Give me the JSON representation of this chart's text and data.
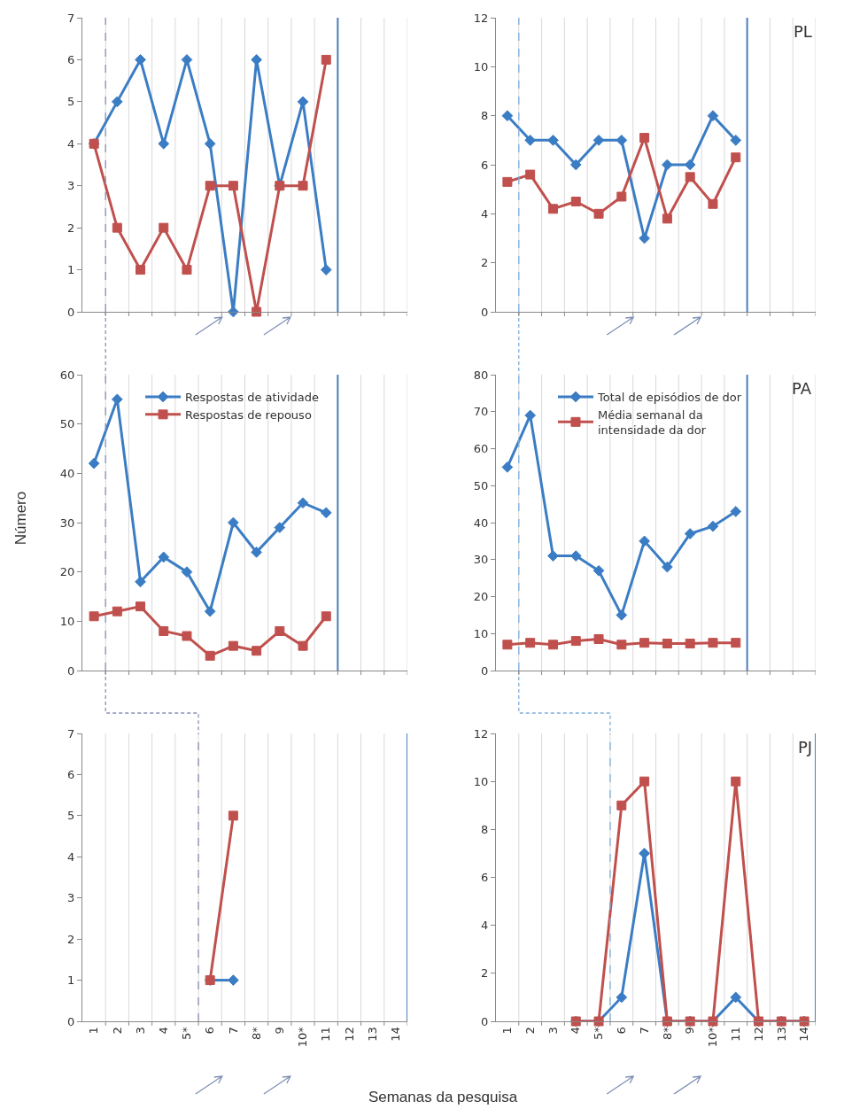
{
  "chart_data": [
    {
      "type": "line",
      "xlim": [
        0.5,
        14.5
      ],
      "ylim": [
        0,
        7
      ],
      "yticks": [
        0,
        1,
        2,
        3,
        4,
        5,
        6,
        7
      ],
      "grid": "x",
      "tick_labels": "y",
      "xticks": [
        {
          "value": 1.5,
          "label": null
        },
        {
          "value": 2.5,
          "label": null
        },
        {
          "value": 3.5,
          "label": null
        },
        {
          "value": 4.5,
          "label": null
        },
        {
          "value": 5.5,
          "label": null
        },
        {
          "value": 6.5,
          "label": null
        },
        {
          "value": 7.5,
          "label": null
        },
        {
          "value": 8.5,
          "label": null
        },
        {
          "value": 9.5,
          "label": null
        },
        {
          "value": 10.5,
          "label": null
        },
        {
          "value": 11.5,
          "label": null
        },
        {
          "value": 12.5,
          "label": null
        },
        {
          "value": 13.5,
          "label": null
        },
        {
          "value": 14.5,
          "label": null
        }
      ],
      "ref_lines": [
        {
          "axis": "x",
          "value": 1.5,
          "color": "#8a90b8",
          "line_style": "dashed"
        },
        {
          "axis": "x",
          "value": 11.5,
          "color": "#4a7ebb",
          "line_style": "solid"
        }
      ],
      "series": [
        {
          "color": "#3b7dc4",
          "marker": "diamond",
          "x": [
            1,
            2,
            3,
            4,
            5,
            6,
            7,
            8,
            9,
            10,
            11
          ],
          "values": [
            4,
            5,
            6,
            4,
            6,
            4,
            0,
            6,
            3,
            5,
            1
          ]
        },
        {
          "color": "#c0504d",
          "marker": "square",
          "x": [
            1,
            2,
            3,
            4,
            5,
            6,
            7,
            8,
            9,
            10,
            11
          ],
          "values": [
            4,
            2,
            1,
            2,
            1,
            3,
            3,
            0,
            3,
            3,
            6
          ]
        }
      ]
    },
    {
      "type": "line",
      "title": "PL",
      "xlim": [
        0.5,
        14.5
      ],
      "ylim": [
        0,
        12
      ],
      "yticks": [
        0,
        2,
        4,
        6,
        8,
        10,
        12
      ],
      "grid": "x",
      "tick_labels": "y",
      "xticks": [
        {
          "value": 1.5,
          "label": null
        },
        {
          "value": 2.5,
          "label": null
        },
        {
          "value": 3.5,
          "label": null
        },
        {
          "value": 4.5,
          "label": null
        },
        {
          "value": 5.5,
          "label": null
        },
        {
          "value": 6.5,
          "label": null
        },
        {
          "value": 7.5,
          "label": null
        },
        {
          "value": 8.5,
          "label": null
        },
        {
          "value": 9.5,
          "label": null
        },
        {
          "value": 10.5,
          "label": null
        },
        {
          "value": 11.5,
          "label": null
        },
        {
          "value": 12.5,
          "label": null
        },
        {
          "value": 13.5,
          "label": null
        },
        {
          "value": 14.5,
          "label": null
        }
      ],
      "ref_lines": [
        {
          "axis": "x",
          "value": 1.5,
          "color": "#7fb0dc",
          "line_style": "dashed"
        },
        {
          "axis": "x",
          "value": 11.5,
          "color": "#4a7ebb",
          "line_style": "solid"
        }
      ],
      "series": [
        {
          "color": "#3b7dc4",
          "marker": "diamond",
          "x": [
            1,
            2,
            3,
            4,
            5,
            6,
            7,
            8,
            9,
            10,
            11
          ],
          "values": [
            8,
            7,
            7,
            6,
            7,
            7,
            3,
            6,
            6,
            8,
            7
          ]
        },
        {
          "color": "#c0504d",
          "marker": "square",
          "x": [
            1,
            2,
            3,
            4,
            5,
            6,
            7,
            8,
            9,
            10,
            11
          ],
          "values": [
            5.3,
            5.6,
            4.2,
            4.5,
            4.0,
            4.7,
            7.1,
            3.8,
            5.5,
            4.4,
            6.3
          ]
        }
      ]
    },
    {
      "type": "line",
      "ylabel": "Número",
      "xlim": [
        0.5,
        14.5
      ],
      "ylim": [
        0,
        60
      ],
      "yticks": [
        0,
        10,
        20,
        30,
        40,
        50,
        60
      ],
      "grid": "x",
      "tick_labels": "y",
      "legend": "top",
      "xticks": [
        {
          "value": 1.5,
          "label": null
        },
        {
          "value": 2.5,
          "label": null
        },
        {
          "value": 3.5,
          "label": null
        },
        {
          "value": 4.5,
          "label": null
        },
        {
          "value": 5.5,
          "label": null
        },
        {
          "value": 6.5,
          "label": null
        },
        {
          "value": 7.5,
          "label": null
        },
        {
          "value": 8.5,
          "label": null
        },
        {
          "value": 9.5,
          "label": null
        },
        {
          "value": 10.5,
          "label": null
        },
        {
          "value": 11.5,
          "label": null
        },
        {
          "value": 12.5,
          "label": null
        },
        {
          "value": 13.5,
          "label": null
        },
        {
          "value": 14.5,
          "label": null
        }
      ],
      "ref_lines": [
        {
          "axis": "x",
          "value": 1.5,
          "color": "#8a90b8",
          "line_style": "dashed"
        },
        {
          "axis": "x",
          "value": 11.5,
          "color": "#4a7ebb",
          "line_style": "solid"
        }
      ],
      "series": [
        {
          "name": "Respostas de atividade",
          "color": "#3b7dc4",
          "marker": "diamond",
          "x": [
            1,
            2,
            3,
            4,
            5,
            6,
            7,
            8,
            9,
            10,
            11
          ],
          "values": [
            42,
            55,
            18,
            23,
            20,
            12,
            30,
            24,
            29,
            34,
            32
          ]
        },
        {
          "name": "Respostas de repouso",
          "color": "#c0504d",
          "marker": "square",
          "x": [
            1,
            2,
            3,
            4,
            5,
            6,
            7,
            8,
            9,
            10,
            11
          ],
          "values": [
            11,
            12,
            13,
            8,
            7,
            3,
            5,
            4,
            8,
            5,
            11
          ]
        }
      ]
    },
    {
      "type": "line",
      "title": "PA",
      "xlim": [
        0.5,
        14.5
      ],
      "ylim": [
        0,
        80
      ],
      "yticks": [
        0,
        10,
        20,
        30,
        40,
        50,
        60,
        70,
        80
      ],
      "grid": "x",
      "tick_labels": "y",
      "legend": "top",
      "xticks": [
        {
          "value": 1.5,
          "label": null
        },
        {
          "value": 2.5,
          "label": null
        },
        {
          "value": 3.5,
          "label": null
        },
        {
          "value": 4.5,
          "label": null
        },
        {
          "value": 5.5,
          "label": null
        },
        {
          "value": 6.5,
          "label": null
        },
        {
          "value": 7.5,
          "label": null
        },
        {
          "value": 8.5,
          "label": null
        },
        {
          "value": 9.5,
          "label": null
        },
        {
          "value": 10.5,
          "label": null
        },
        {
          "value": 11.5,
          "label": null
        },
        {
          "value": 12.5,
          "label": null
        },
        {
          "value": 13.5,
          "label": null
        },
        {
          "value": 14.5,
          "label": null
        }
      ],
      "ref_lines": [
        {
          "axis": "x",
          "value": 1.5,
          "color": "#7fb0dc",
          "line_style": "dashed"
        },
        {
          "axis": "x",
          "value": 11.5,
          "color": "#4a7ebb",
          "line_style": "solid"
        }
      ],
      "series": [
        {
          "name": "Total de episódios de dor",
          "color": "#3b7dc4",
          "marker": "diamond",
          "x": [
            1,
            2,
            3,
            4,
            5,
            6,
            7,
            8,
            9,
            10,
            11
          ],
          "values": [
            55,
            69,
            31,
            31,
            27,
            15,
            35,
            28,
            37,
            39,
            43
          ]
        },
        {
          "name": "Média semanal da intensidade da dor",
          "color": "#c0504d",
          "marker": "square",
          "x": [
            1,
            2,
            3,
            4,
            5,
            6,
            7,
            8,
            9,
            10,
            11
          ],
          "values": [
            7,
            7.5,
            7,
            8,
            8.5,
            7,
            7.5,
            7.3,
            7.3,
            7.5,
            7.5
          ]
        }
      ]
    },
    {
      "type": "line",
      "xlabel": "Semanas da pesquisa",
      "xlim": [
        0.5,
        14.5
      ],
      "ylim": [
        0,
        7
      ],
      "yticks": [
        0,
        1,
        2,
        3,
        4,
        5,
        6,
        7
      ],
      "grid": "x",
      "xticks": [
        {
          "value": 1,
          "label": "1"
        },
        {
          "value": 2,
          "label": "2"
        },
        {
          "value": 3,
          "label": "3"
        },
        {
          "value": 4,
          "label": "4"
        },
        {
          "value": 5,
          "label": "5*"
        },
        {
          "value": 6,
          "label": "6"
        },
        {
          "value": 7,
          "label": "7"
        },
        {
          "value": 8,
          "label": "8*"
        },
        {
          "value": 9,
          "label": "9"
        },
        {
          "value": 10,
          "label": "10*"
        },
        {
          "value": 11,
          "label": "11"
        },
        {
          "value": 12,
          "label": "12"
        },
        {
          "value": 13,
          "label": "13"
        },
        {
          "value": 14,
          "label": "14"
        },
        {
          "value": 1.5,
          "label": null
        },
        {
          "value": 2.5,
          "label": null
        },
        {
          "value": 3.5,
          "label": null
        },
        {
          "value": 4.5,
          "label": null
        },
        {
          "value": 5.5,
          "label": null
        },
        {
          "value": 6.5,
          "label": null
        },
        {
          "value": 7.5,
          "label": null
        },
        {
          "value": 8.5,
          "label": null
        },
        {
          "value": 9.5,
          "label": null
        },
        {
          "value": 10.5,
          "label": null
        },
        {
          "value": 11.5,
          "label": null
        },
        {
          "value": 12.5,
          "label": null
        },
        {
          "value": 13.5,
          "label": null
        },
        {
          "value": 14.5,
          "label": null
        }
      ],
      "ref_lines": [
        {
          "axis": "x",
          "value": 5.5,
          "color": "#8a90b8",
          "line_style": "dashed"
        },
        {
          "axis": "x",
          "value": 14.5,
          "color": "#4a7ebb",
          "line_style": "solid"
        }
      ],
      "series": [
        {
          "color": "#3b7dc4",
          "marker": "diamond",
          "x": [
            6,
            7
          ],
          "values": [
            1,
            1
          ]
        },
        {
          "color": "#c0504d",
          "marker": "square",
          "x": [
            6,
            7
          ],
          "values": [
            1,
            5
          ]
        }
      ]
    },
    {
      "type": "line",
      "title": "PJ",
      "xlim": [
        0.5,
        14.5
      ],
      "ylim": [
        0,
        12
      ],
      "yticks": [
        0,
        2,
        4,
        6,
        8,
        10,
        12
      ],
      "grid": "x",
      "xticks": [
        {
          "value": 1,
          "label": "1"
        },
        {
          "value": 2,
          "label": "2"
        },
        {
          "value": 3,
          "label": "3"
        },
        {
          "value": 4,
          "label": "4"
        },
        {
          "value": 5,
          "label": "5*"
        },
        {
          "value": 6,
          "label": "6"
        },
        {
          "value": 7,
          "label": "7"
        },
        {
          "value": 8,
          "label": "8*"
        },
        {
          "value": 9,
          "label": "9"
        },
        {
          "value": 10,
          "label": "10*"
        },
        {
          "value": 11,
          "label": "11"
        },
        {
          "value": 12,
          "label": "12"
        },
        {
          "value": 13,
          "label": "13"
        },
        {
          "value": 14,
          "label": "14"
        },
        {
          "value": 1.5,
          "label": null
        },
        {
          "value": 2.5,
          "label": null
        },
        {
          "value": 3.5,
          "label": null
        },
        {
          "value": 4.5,
          "label": null
        },
        {
          "value": 5.5,
          "label": null
        },
        {
          "value": 6.5,
          "label": null
        },
        {
          "value": 7.5,
          "label": null
        },
        {
          "value": 8.5,
          "label": null
        },
        {
          "value": 9.5,
          "label": null
        },
        {
          "value": 10.5,
          "label": null
        },
        {
          "value": 11.5,
          "label": null
        },
        {
          "value": 12.5,
          "label": null
        },
        {
          "value": 13.5,
          "label": null
        },
        {
          "value": 14.5,
          "label": null
        }
      ],
      "ref_lines": [
        {
          "axis": "x",
          "value": 5.5,
          "color": "#7fb0dc",
          "line_style": "dashed"
        },
        {
          "axis": "x",
          "value": 14.5,
          "color": "#4a7ebb",
          "line_style": "solid"
        }
      ],
      "series": [
        {
          "color": "#3b7dc4",
          "marker": "diamond",
          "x": [
            4,
            5,
            6,
            7,
            8,
            9,
            10,
            11,
            12,
            13,
            14
          ],
          "values": [
            0,
            0,
            1,
            7,
            0,
            0,
            0,
            1,
            0,
            0,
            0
          ]
        },
        {
          "color": "#c0504d",
          "marker": "square",
          "x": [
            4,
            5,
            6,
            7,
            8,
            9,
            10,
            11,
            12,
            13,
            14
          ],
          "values": [
            0,
            0,
            9,
            10,
            0,
            0,
            0,
            10,
            0,
            0,
            0
          ]
        }
      ]
    }
  ]
}
